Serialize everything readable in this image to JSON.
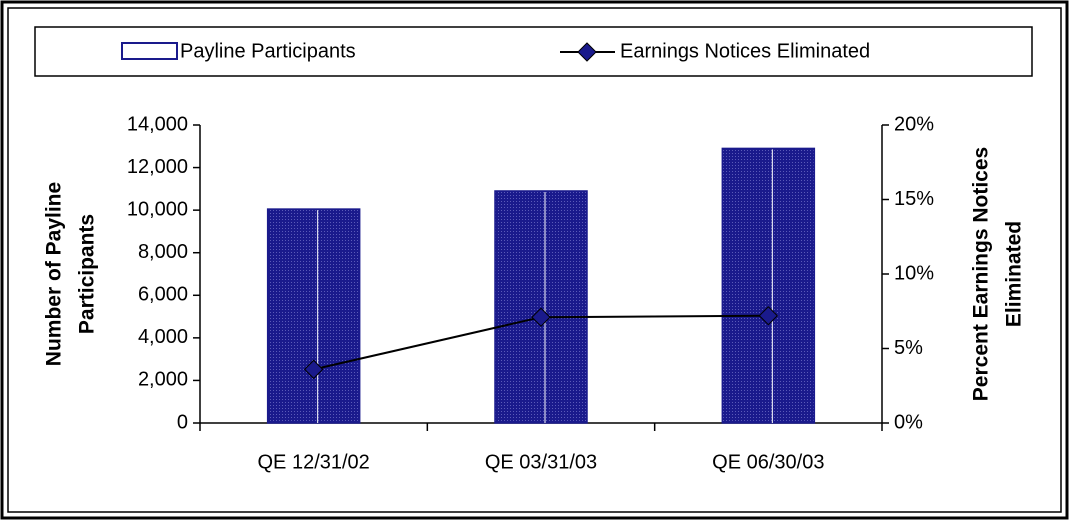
{
  "chart_data": {
    "type": "bar_line",
    "categories": [
      "QE 12/31/02",
      "QE 03/31/03",
      "QE 06/30/03"
    ],
    "series": [
      {
        "name": "Payline Participants",
        "color": "#1a1a8c",
        "values": [
          10050,
          10900,
          12900
        ]
      },
      {
        "name": "Earnings Notices Eliminated",
        "color": "#000000",
        "marker_color": "#1a1a8c",
        "axis": "y2",
        "values": [
          3.6,
          7.1,
          7.2
        ]
      }
    ],
    "y_label": [
      "Number of Payline",
      "Participants"
    ],
    "y2_label": [
      "Percent Earnings Notices",
      "Eliminated"
    ],
    "ylim": [
      0,
      14000
    ],
    "yticks": [
      0,
      {
        "value": 2000,
        "label": "2,000"
      },
      {
        "value": 4000,
        "label": "4,000"
      },
      {
        "value": 6000,
        "label": "6,000"
      },
      {
        "value": 8000,
        "label": "8,000"
      },
      {
        "value": 10000,
        "label": "10,000"
      },
      {
        "value": 12000,
        "label": "12,000"
      },
      {
        "value": 14000,
        "label": "14,000"
      }
    ],
    "y2lim": [
      0,
      20
    ],
    "y2ticks": [
      {
        "value": 0,
        "label": "0%"
      },
      {
        "value": 5,
        "label": "5%"
      },
      {
        "value": 10,
        "label": "10%"
      },
      {
        "value": 15,
        "label": "15%"
      },
      {
        "value": 20,
        "label": "20%"
      }
    ],
    "legend": "top"
  }
}
